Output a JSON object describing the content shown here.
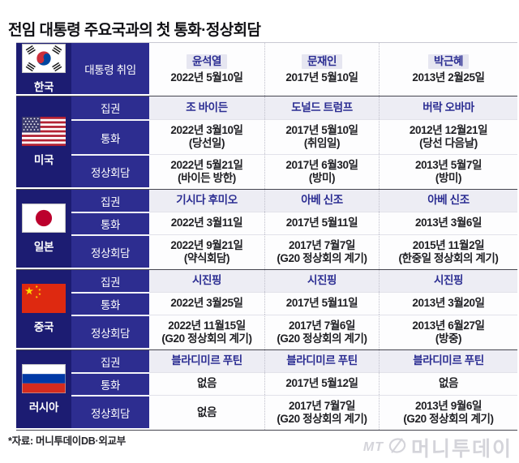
{
  "title": "전임 대통령 주요국과의 첫 통화·정상회담",
  "colors": {
    "column_navy_dark": "#1c1c72",
    "column_navy": "#2d2d90",
    "leader_name_text": "#2b2d92",
    "lead_row_band": "#ededf4",
    "korea_name_chip": "#e6e6f1",
    "block_divider": "#45454f",
    "date_text": "#202024"
  },
  "chart_data": {
    "type": "table",
    "title": "전임 대통령 주요국과의 첫 통화·정상회담",
    "korea": {
      "country": "한국",
      "flag_icon": "flag-south-korea-icon",
      "row_label": "대통령 취임",
      "cells": [
        {
          "name": "윤석열",
          "date": "2022년 5월10일"
        },
        {
          "name": "문재인",
          "date": "2017년 5월10일"
        },
        {
          "name": "박근혜",
          "date": "2013년 2월25일"
        }
      ]
    },
    "countries": [
      {
        "country": "미국",
        "flag_icon": "flag-united-states-icon",
        "rows": [
          {
            "label": "집권",
            "cells": [
              [
                "조 바이든"
              ],
              [
                "도널드 트럼프"
              ],
              [
                "버락 오바마"
              ]
            ]
          },
          {
            "label": "통화",
            "cells": [
              [
                "2022년 3월10일",
                "(당선일)"
              ],
              [
                "2017년 5월10일",
                "(취임일)"
              ],
              [
                "2012년 12월21일",
                "(당선 다음날)"
              ]
            ]
          },
          {
            "label": "정상회담",
            "cells": [
              [
                "2022년 5월21일",
                "(바이든 방한)"
              ],
              [
                "2017년 6월30일",
                "(방미)"
              ],
              [
                "2013년 5월7일",
                "(방미)"
              ]
            ]
          }
        ]
      },
      {
        "country": "일본",
        "flag_icon": "flag-japan-icon",
        "rows": [
          {
            "label": "집권",
            "cells": [
              [
                "기시다 후미오"
              ],
              [
                "아베 신조"
              ],
              [
                "아베 신조"
              ]
            ]
          },
          {
            "label": "통화",
            "cells": [
              [
                "2022년 3월11일"
              ],
              [
                "2017년 5월11일"
              ],
              [
                "2013년 3월6일"
              ]
            ]
          },
          {
            "label": "정상회담",
            "cells": [
              [
                "2022년 9월21일",
                "(약식회담)"
              ],
              [
                "2017년 7월7일",
                "(G20 정상회의 계기)"
              ],
              [
                "2015년 11월2일",
                "(한중일 정상회의 계기)"
              ]
            ]
          }
        ]
      },
      {
        "country": "중국",
        "flag_icon": "flag-china-icon",
        "rows": [
          {
            "label": "집권",
            "cells": [
              [
                "시진핑"
              ],
              [
                "시진핑"
              ],
              [
                "시진핑"
              ]
            ]
          },
          {
            "label": "통화",
            "cells": [
              [
                "2022년 3월25일"
              ],
              [
                "2017년 5월11일"
              ],
              [
                "2013년 3월20일"
              ]
            ]
          },
          {
            "label": "정상회담",
            "cells": [
              [
                "2022년 11월15일",
                "(G20 정상회의 계기)"
              ],
              [
                "2017년 7월6일",
                "(G20 정상회의 계기)"
              ],
              [
                "2013년 6월27일",
                "(방중)"
              ]
            ]
          }
        ]
      },
      {
        "country": "러시아",
        "flag_icon": "flag-russia-icon",
        "rows": [
          {
            "label": "집권",
            "cells": [
              [
                "블라디미르 푸틴"
              ],
              [
                "블라디미르 푸틴"
              ],
              [
                "블라디미르 푸틴"
              ]
            ]
          },
          {
            "label": "통화",
            "cells": [
              [
                "없음"
              ],
              [
                "2017년 5월12일"
              ],
              [
                "없음"
              ]
            ]
          },
          {
            "label": "정상회담",
            "cells": [
              [
                "없음"
              ],
              [
                "2017년 7월7일",
                "(G20 정상회의 계기)"
              ],
              [
                "2013년 9월6일",
                "(G20 정상회의 계기)"
              ]
            ]
          }
        ]
      }
    ]
  },
  "footer": {
    "source": "*자료: 머니투데이DB·외교부",
    "logo_mt": "MT",
    "logo_name": "머니투데이",
    "logo_icon": "mt-circle-logo-icon"
  }
}
